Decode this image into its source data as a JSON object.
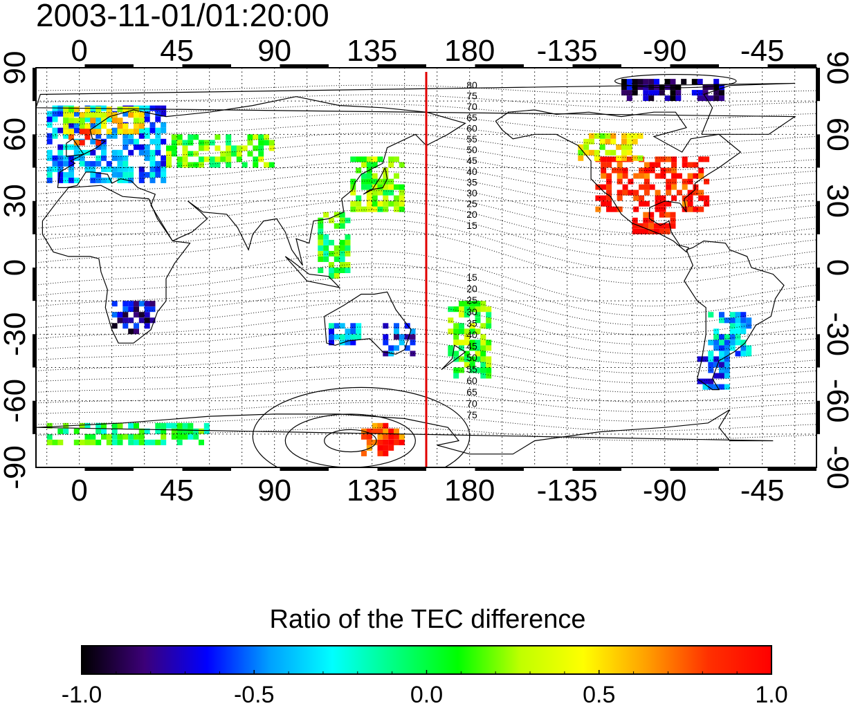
{
  "timestamp": "2003-11-01/01:20:00",
  "map": {
    "projection": "equirectangular",
    "central_longitude": 160,
    "lon_ticks": [
      0,
      45,
      90,
      135,
      180,
      -135,
      -90,
      -45
    ],
    "lat_ticks": [
      90,
      60,
      30,
      0,
      -30,
      -60,
      -90
    ],
    "lon_tick_labels": [
      "0",
      "45",
      "90",
      "135",
      "180",
      "-135",
      "-90",
      "-45"
    ],
    "lat_tick_labels": [
      "90",
      "60",
      "30",
      "0",
      "-30",
      "-60",
      "-90"
    ],
    "marker_meridian_lon": 160,
    "marker_color": "#e00000",
    "contour_labels_north": [
      "80",
      "75",
      "70",
      "65",
      "60",
      "55",
      "50",
      "45",
      "40",
      "35",
      "30",
      "25",
      "20",
      "15"
    ],
    "contour_labels_south": [
      "15",
      "20",
      "25",
      "30",
      "35",
      "40",
      "45",
      "50",
      "55",
      "60",
      "65",
      "70",
      "75"
    ]
  },
  "colorbar": {
    "title": "Ratio of the TEC difference",
    "min": -1.0,
    "max": 1.0,
    "tick_labels": [
      "-1.0",
      "-0.5",
      "0.0",
      "0.5",
      "1.0"
    ],
    "colormap": [
      "#000000",
      "#3c0078",
      "#0000ff",
      "#00a0ff",
      "#00ffff",
      "#00ff80",
      "#00ff00",
      "#c0ff00",
      "#ffff00",
      "#ffa000",
      "#ff3000",
      "#ff0000"
    ]
  },
  "chart_data": {
    "type": "heatmap",
    "title": "2003-11-01/01:20:00",
    "value_label": "Ratio of the TEC difference",
    "xlabel": "",
    "ylabel": "",
    "xlim_lon": [
      -20,
      340
    ],
    "ylim": [
      -90,
      90
    ],
    "regions": [
      {
        "lon": [
          -15,
          40
        ],
        "lat": [
          38,
          72
        ],
        "value": -0.45
      },
      {
        "lon": [
          -10,
          30
        ],
        "lat": [
          60,
          72
        ],
        "value": 0.4
      },
      {
        "lon": [
          -5,
          10
        ],
        "lat": [
          55,
          62
        ],
        "value": 0.7
      },
      {
        "lon": [
          40,
          90
        ],
        "lat": [
          45,
          60
        ],
        "value": 0.15
      },
      {
        "lon": [
          125,
          150
        ],
        "lat": [
          25,
          48
        ],
        "value": 0.2
      },
      {
        "lon": [
          110,
          125
        ],
        "lat": [
          -5,
          25
        ],
        "value": 0.05
      },
      {
        "lon": [
          140,
          155
        ],
        "lat": [
          -40,
          -25
        ],
        "value": -0.6
      },
      {
        "lon": [
          115,
          130
        ],
        "lat": [
          -35,
          -25
        ],
        "value": -0.4
      },
      {
        "lon": [
          170,
          190
        ],
        "lat": [
          -50,
          -15
        ],
        "value": 0.15
      },
      {
        "lon": [
          238,
          290
        ],
        "lat": [
          25,
          50
        ],
        "value": 0.9
      },
      {
        "lon": [
          230,
          260
        ],
        "lat": [
          48,
          60
        ],
        "value": 0.4
      },
      {
        "lon": [
          255,
          275
        ],
        "lat": [
          15,
          25
        ],
        "value": 0.95
      },
      {
        "lon": [
          290,
          310
        ],
        "lat": [
          -40,
          -20
        ],
        "value": -0.35
      },
      {
        "lon": [
          285,
          300
        ],
        "lat": [
          -55,
          -40
        ],
        "value": -0.5
      },
      {
        "lon": [
          130,
          150
        ],
        "lat": [
          -85,
          -72
        ],
        "value": 0.85
      },
      {
        "lon": [
          -15,
          60
        ],
        "lat": [
          -80,
          -72
        ],
        "value": 0.0
      },
      {
        "lon": [
          15,
          35
        ],
        "lat": [
          -30,
          -15
        ],
        "value": -0.75
      },
      {
        "lon": [
          250,
          300
        ],
        "lat": [
          75,
          85
        ],
        "value": -0.85
      }
    ]
  }
}
